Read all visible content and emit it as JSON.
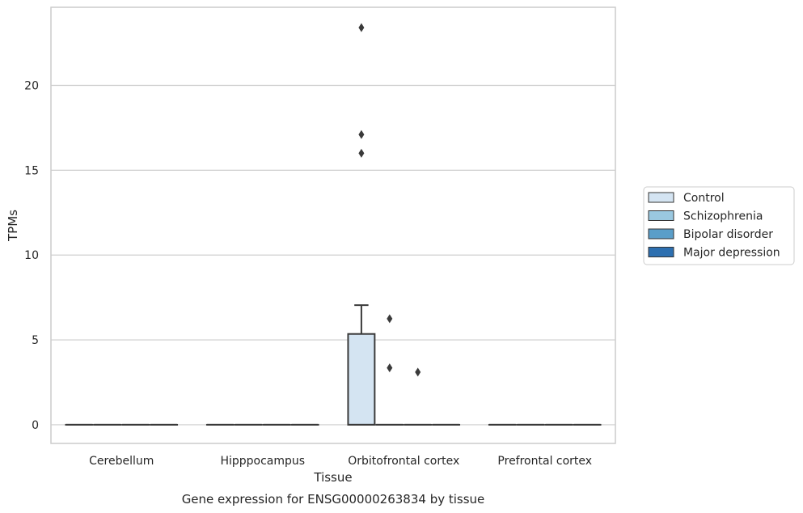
{
  "chart_data": {
    "type": "box",
    "caption": "Gene expression for ENSG00000263834 by tissue",
    "xlabel": "Tissue",
    "ylabel": "TPMs",
    "ylim": [
      -1.1,
      24.6
    ],
    "yticks": [
      0,
      5,
      10,
      15,
      20
    ],
    "grid": true,
    "legend_position": "right",
    "categories": [
      "Cerebellum",
      "Hipppocampus",
      "Orbitofrontal cortex",
      "Prefrontal cortex"
    ],
    "series": [
      {
        "name": "Control",
        "color": "#d4e4f2",
        "boxes": [
          {
            "category": "Cerebellum",
            "min": 0,
            "q1": 0,
            "median": 0,
            "q3": 0,
            "max": 0,
            "outliers": []
          },
          {
            "category": "Hipppocampus",
            "min": 0,
            "q1": 0,
            "median": 0,
            "q3": 0,
            "max": 0,
            "outliers": []
          },
          {
            "category": "Orbitofrontal cortex",
            "min": 0,
            "q1": 0,
            "median": 0,
            "q3": 5.35,
            "max": 7.05,
            "outliers": [
              16.0,
              17.1,
              23.4
            ]
          },
          {
            "category": "Prefrontal cortex",
            "min": 0,
            "q1": 0,
            "median": 0,
            "q3": 0,
            "max": 0,
            "outliers": []
          }
        ]
      },
      {
        "name": "Schizophrenia",
        "color": "#9ac8e0",
        "boxes": [
          {
            "category": "Cerebellum",
            "min": 0,
            "q1": 0,
            "median": 0,
            "q3": 0,
            "max": 0,
            "outliers": []
          },
          {
            "category": "Hipppocampus",
            "min": 0,
            "q1": 0,
            "median": 0,
            "q3": 0,
            "max": 0,
            "outliers": []
          },
          {
            "category": "Orbitofrontal cortex",
            "min": 0,
            "q1": 0,
            "median": 0,
            "q3": 0,
            "max": 0,
            "outliers": [
              3.35,
              6.25
            ]
          },
          {
            "category": "Prefrontal cortex",
            "min": 0,
            "q1": 0,
            "median": 0,
            "q3": 0,
            "max": 0,
            "outliers": []
          }
        ]
      },
      {
        "name": "Bipolar disorder",
        "color": "#5a9ec9",
        "boxes": [
          {
            "category": "Cerebellum",
            "min": 0,
            "q1": 0,
            "median": 0,
            "q3": 0,
            "max": 0,
            "outliers": []
          },
          {
            "category": "Hipppocampus",
            "min": 0,
            "q1": 0,
            "median": 0,
            "q3": 0,
            "max": 0,
            "outliers": []
          },
          {
            "category": "Orbitofrontal cortex",
            "min": 0,
            "q1": 0,
            "median": 0,
            "q3": 0,
            "max": 0,
            "outliers": [
              3.1
            ]
          },
          {
            "category": "Prefrontal cortex",
            "min": 0,
            "q1": 0,
            "median": 0,
            "q3": 0,
            "max": 0,
            "outliers": []
          }
        ]
      },
      {
        "name": "Major depression",
        "color": "#2d6fb0",
        "boxes": [
          {
            "category": "Cerebellum",
            "min": 0,
            "q1": 0,
            "median": 0,
            "q3": 0,
            "max": 0,
            "outliers": []
          },
          {
            "category": "Hipppocampus",
            "min": 0,
            "q1": 0,
            "median": 0,
            "q3": 0,
            "max": 0,
            "outliers": []
          },
          {
            "category": "Orbitofrontal cortex",
            "min": 0,
            "q1": 0,
            "median": 0,
            "q3": 0,
            "max": 0,
            "outliers": []
          },
          {
            "category": "Prefrontal cortex",
            "min": 0,
            "q1": 0,
            "median": 0,
            "q3": 0,
            "max": 0,
            "outliers": []
          }
        ]
      }
    ]
  }
}
